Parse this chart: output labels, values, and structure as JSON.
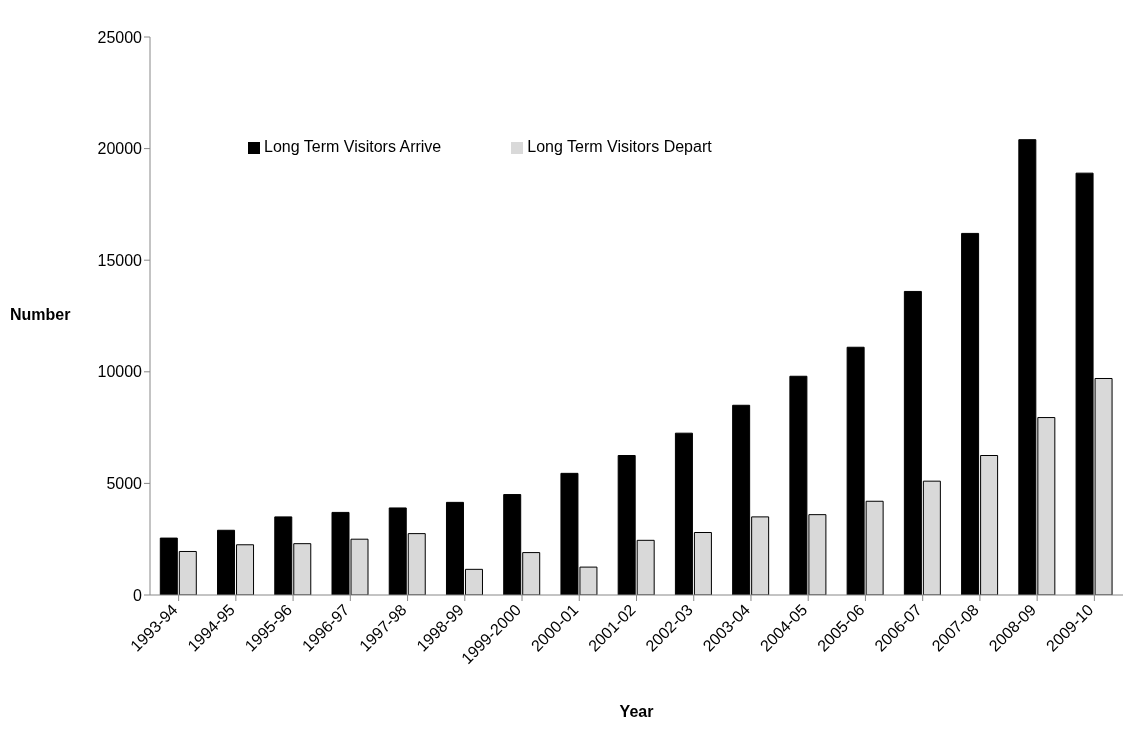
{
  "chart_data": {
    "type": "bar",
    "xlabel": "Year",
    "ylabel": "Number",
    "categories": [
      "1993-94",
      "1994-95",
      "1995-96",
      "1996-97",
      "1997-98",
      "1998-99",
      "1999-2000",
      "2000-01",
      "2001-02",
      "2002-03",
      "2003-04",
      "2004-05",
      "2005-06",
      "2006-07",
      "2007-08",
      "2008-09",
      "2009-10"
    ],
    "series": [
      {
        "name": "Long Term Visitors Arrive",
        "color": "#000000",
        "values": [
          2550,
          2900,
          3500,
          3700,
          3900,
          4150,
          4500,
          5450,
          6250,
          7250,
          8500,
          9800,
          11100,
          13600,
          16200,
          20400,
          18900
        ]
      },
      {
        "name": "Long Term Visitors Depart",
        "color": "#d9d9d9",
        "values": [
          1950,
          2250,
          2300,
          2500,
          2750,
          1150,
          1900,
          1250,
          2450,
          2800,
          3500,
          3600,
          4200,
          5100,
          6250,
          7950,
          9700
        ]
      }
    ],
    "ylim": [
      0,
      25000
    ],
    "yticks": [
      0,
      5000,
      10000,
      15000,
      20000,
      25000
    ],
    "grid": false,
    "legend": "top left"
  }
}
